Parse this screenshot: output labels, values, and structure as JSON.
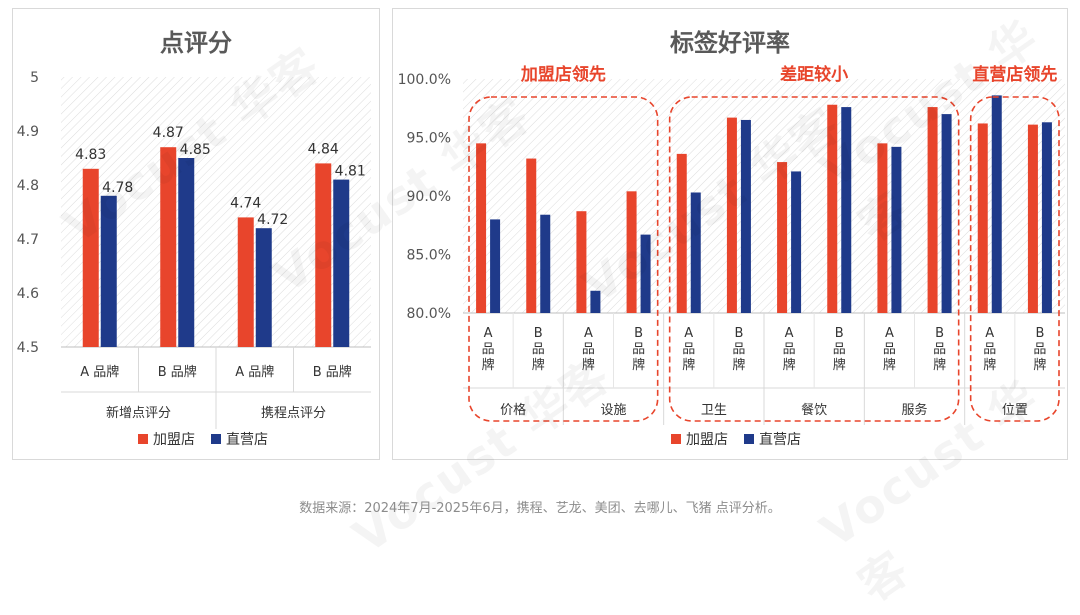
{
  "source_note": "数据来源：2024年7月-2025年6月，携程、艺龙、美团、去哪儿、飞猪 点评分析。",
  "watermark": "Vocust 华客",
  "colors": {
    "franchise": "#e8452c",
    "direct": "#1f3a8a",
    "annotation": "#e8452c",
    "hatch": "#dcdcdc"
  },
  "chart_data": [
    {
      "type": "bar",
      "title": "点评分",
      "ylim": [
        4.5,
        5.0
      ],
      "yticks": [
        "4.5",
        "4.6",
        "4.7",
        "4.8",
        "4.9",
        "5"
      ],
      "grid": false,
      "groups": [
        "新增点评分",
        "携程点评分"
      ],
      "categories": [
        "A 品牌",
        "B 品牌",
        "A 品牌",
        "B 品牌"
      ],
      "series": [
        {
          "name": "加盟店",
          "values": [
            4.83,
            4.87,
            4.74,
            4.84
          ]
        },
        {
          "name": "直营店",
          "values": [
            4.78,
            4.85,
            4.72,
            4.81
          ]
        }
      ],
      "data_labels": [
        [
          "4.83",
          "4.87",
          "4.74",
          "4.84"
        ],
        [
          "4.78",
          "4.85",
          "4.72",
          "4.81"
        ]
      ],
      "legend": "bottom"
    },
    {
      "type": "bar",
      "title": "标签好评率",
      "ylim": [
        80.0,
        100.0
      ],
      "yticks": [
        "80.0%",
        "85.0%",
        "90.0%",
        "95.0%",
        "100.0%"
      ],
      "grid": false,
      "groups": [
        "价格",
        "设施",
        "卫生",
        "餐饮",
        "服务",
        "位置"
      ],
      "categories": [
        "A品牌",
        "B品牌",
        "A品牌",
        "B品牌",
        "A品牌",
        "B品牌",
        "A品牌",
        "B品牌",
        "A品牌",
        "B品牌",
        "A品牌",
        "B品牌"
      ],
      "series": [
        {
          "name": "加盟店",
          "values": [
            94.5,
            93.2,
            88.7,
            90.4,
            93.6,
            96.7,
            92.9,
            97.8,
            94.5,
            97.6,
            96.2,
            96.1
          ]
        },
        {
          "name": "直营店",
          "values": [
            88.0,
            88.4,
            81.9,
            86.7,
            90.3,
            96.5,
            92.1,
            97.6,
            94.2,
            97.0,
            98.6,
            96.3
          ]
        }
      ],
      "annotations": [
        "加盟店领先",
        "差距较小",
        "直营店领先"
      ],
      "legend": "bottom"
    }
  ]
}
